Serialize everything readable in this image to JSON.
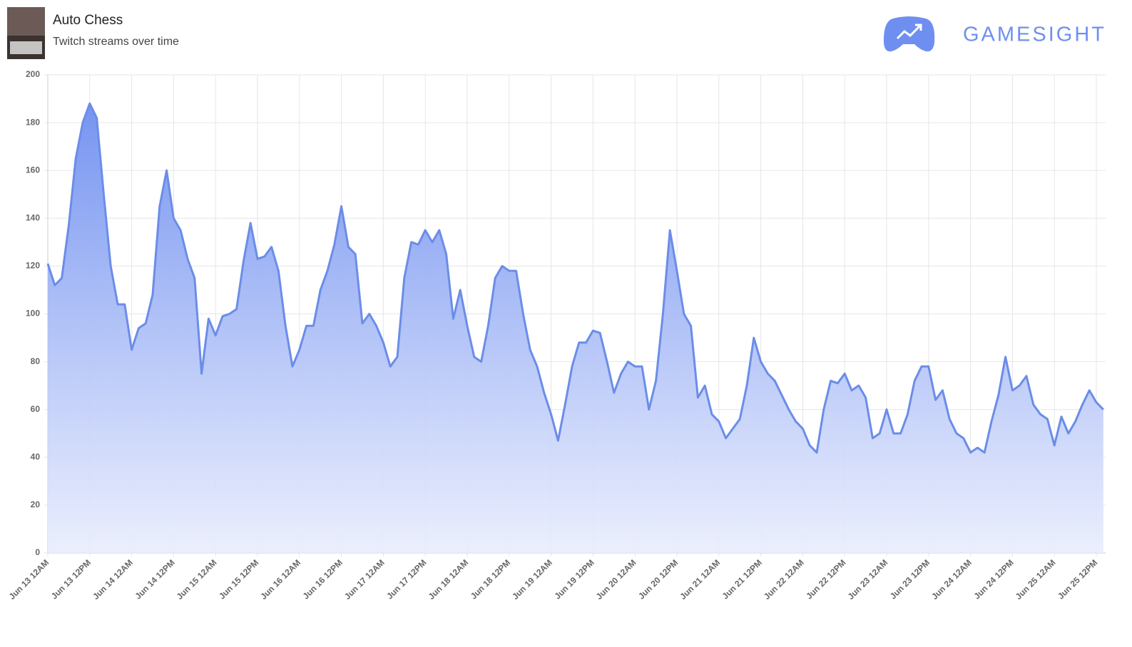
{
  "header": {
    "title": "Auto Chess",
    "subtitle": "Twitch streams over time",
    "brand": "GAMESIGHT"
  },
  "chart_data": {
    "type": "area",
    "categories": [
      "Jun 13 12AM",
      null,
      null,
      null,
      null,
      null,
      "Jun 13 12PM",
      null,
      null,
      null,
      null,
      null,
      "Jun 14 12AM",
      null,
      null,
      null,
      null,
      null,
      "Jun 14 12PM",
      null,
      null,
      null,
      null,
      null,
      "Jun 15 12AM",
      null,
      null,
      null,
      null,
      null,
      "Jun 15 12PM",
      null,
      null,
      null,
      null,
      null,
      "Jun 16 12AM",
      null,
      null,
      null,
      null,
      null,
      "Jun 16 12PM",
      null,
      null,
      null,
      null,
      null,
      "Jun 17 12AM",
      null,
      null,
      null,
      null,
      null,
      "Jun 17 12PM",
      null,
      null,
      null,
      null,
      null,
      "Jun 18 12AM",
      null,
      null,
      null,
      null,
      null,
      "Jun 18 12PM",
      null,
      null,
      null,
      null,
      null,
      "Jun 19 12AM",
      null,
      null,
      null,
      null,
      null,
      "Jun 19 12PM",
      null,
      null,
      null,
      null,
      null,
      "Jun 20 12AM",
      null,
      null,
      null,
      null,
      null,
      "Jun 20 12PM",
      null,
      null,
      null,
      null,
      null,
      "Jun 21 12AM",
      null,
      null,
      null,
      null,
      null,
      "Jun 21 12PM",
      null,
      null,
      null,
      null,
      null,
      "Jun 22 12AM",
      null,
      null,
      null,
      null,
      null,
      "Jun 22 12PM",
      null,
      null,
      null,
      null,
      null,
      "Jun 23 12AM",
      null,
      null,
      null,
      null,
      null,
      "Jun 23 12PM",
      null,
      null,
      null,
      null,
      null,
      "Jun 24 12AM",
      null,
      null,
      null,
      null,
      null,
      "Jun 24 12PM",
      null,
      null,
      null,
      null,
      null,
      "Jun 25 12AM",
      null,
      null,
      null,
      null,
      null,
      "Jun 25 12PM",
      null
    ],
    "values": [
      121,
      112,
      115,
      137,
      165,
      180,
      188,
      182,
      150,
      120,
      104,
      104,
      85,
      94,
      96,
      108,
      145,
      160,
      140,
      135,
      123,
      115,
      75,
      98,
      91,
      99,
      100,
      102,
      122,
      138,
      123,
      124,
      128,
      118,
      95,
      78,
      85,
      95,
      95,
      110,
      118,
      129,
      145,
      128,
      125,
      96,
      100,
      95,
      88,
      78,
      82,
      115,
      130,
      129,
      135,
      130,
      135,
      125,
      98,
      110,
      95,
      82,
      80,
      95,
      115,
      120,
      118,
      118,
      100,
      85,
      78,
      67,
      58,
      47,
      62,
      78,
      88,
      88,
      93,
      92,
      80,
      67,
      75,
      80,
      78,
      78,
      60,
      72,
      100,
      135,
      118,
      100,
      95,
      65,
      70,
      58,
      55,
      48,
      52,
      56,
      70,
      90,
      80,
      75,
      72,
      66,
      60,
      55,
      52,
      45,
      42,
      60,
      72,
      71,
      75,
      68,
      70,
      65,
      48,
      50,
      60,
      50,
      50,
      58,
      72,
      78,
      78,
      64,
      68,
      56,
      50,
      48,
      42,
      44,
      42,
      55,
      66,
      82,
      68,
      70,
      74,
      62,
      58,
      56,
      45,
      57,
      50,
      55,
      62,
      68,
      63,
      60
    ],
    "color": "#6b8de8",
    "ylim": [
      0,
      200
    ],
    "yticks": [
      0,
      20,
      40,
      60,
      80,
      100,
      120,
      140,
      160,
      180,
      200
    ],
    "grid": true
  }
}
